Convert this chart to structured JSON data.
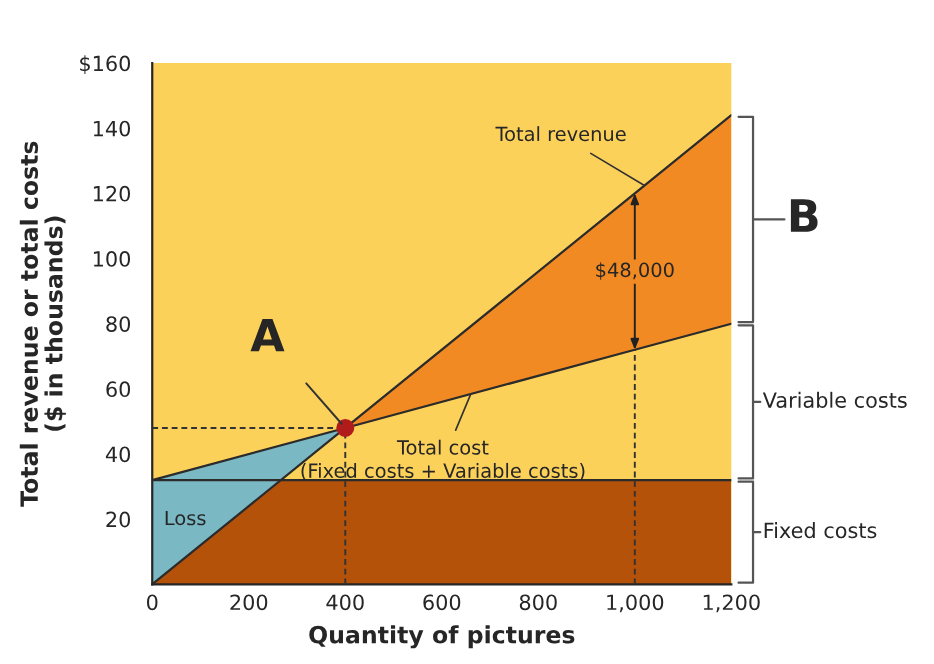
{
  "chart_data": {
    "type": "line",
    "xlabel": "Quantity of pictures",
    "ylabel": "Total revenue or total costs\n($ in thousands)",
    "xlim": [
      0,
      1200
    ],
    "xticks": [
      0,
      200,
      400,
      600,
      800,
      {
        "value": 1000,
        "label": "1,000"
      },
      {
        "value": 1200,
        "label": "1,200"
      }
    ],
    "ylim": [
      0,
      160
    ],
    "yticks": [
      20,
      40,
      60,
      80,
      100,
      120,
      140,
      {
        "value": 160,
        "label": "$160"
      }
    ],
    "grid": false,
    "series": [
      {
        "type": "area",
        "color": "#b5520a",
        "x": [
          0,
          1200
        ],
        "values": [
          32,
          32
        ]
      },
      {
        "name": "Total revenue",
        "color": "#2b2b2b",
        "x": [
          0,
          400,
          1000,
          1200
        ],
        "values": [
          0,
          48,
          120,
          144
        ]
      },
      {
        "name": "Total cost\n(Fixed costs + Variable costs)",
        "color": "#2b2b2b",
        "x": [
          0,
          400,
          1000,
          1200
        ],
        "values": [
          32,
          48,
          72,
          80
        ]
      },
      {
        "type": "scatter",
        "color": "#b01c1c",
        "marker": "circle",
        "x": [
          400
        ],
        "values": [
          48
        ]
      }
    ],
    "ref_lines": [
      {
        "axis": "y",
        "value": 48,
        "line_style": "dashed",
        "color": "#333333"
      },
      {
        "axis": "x",
        "value": 400,
        "line_style": "dashed",
        "color": "#333333"
      },
      {
        "axis": "x",
        "value": 1000,
        "line_style": "dashed",
        "color": "#333333"
      }
    ],
    "annotations": [
      {
        "text": "A",
        "x": 400,
        "y": 48
      },
      "$48,000",
      "Loss",
      "B",
      "Variable costs",
      "Fixed costs"
    ]
  }
}
